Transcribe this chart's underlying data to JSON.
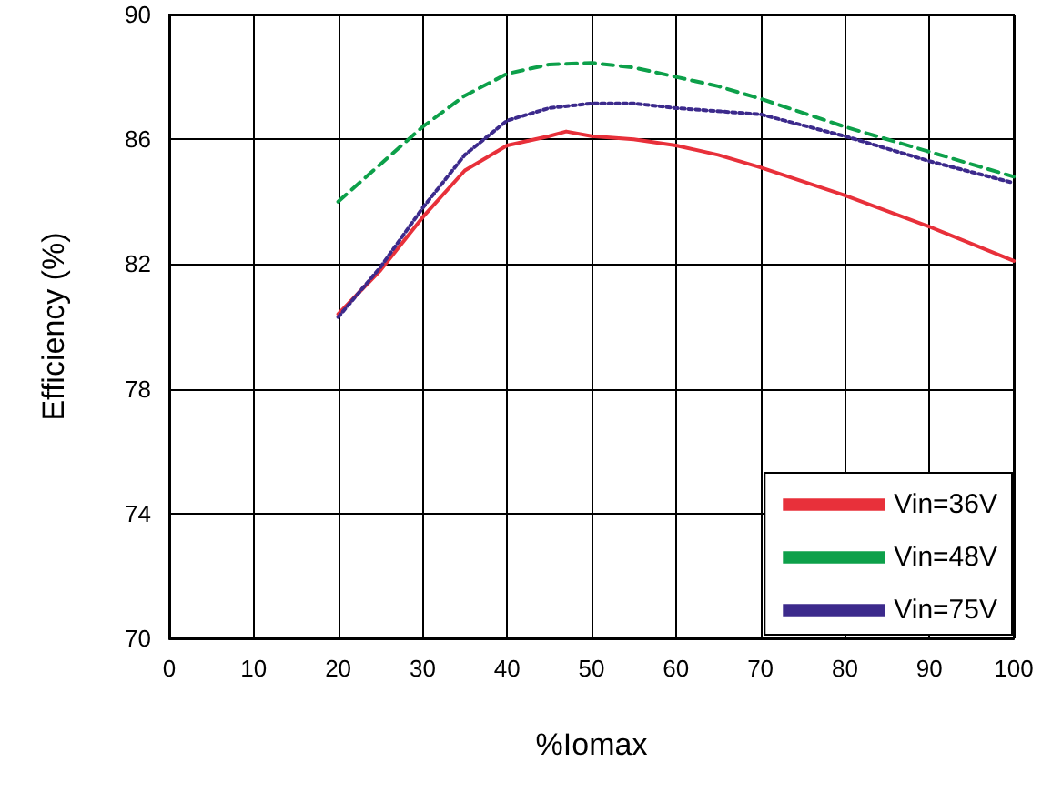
{
  "chart_data": {
    "type": "line",
    "xlabel": "%Iomax",
    "ylabel": "Efficiency (%)",
    "xlim": [
      0,
      100
    ],
    "xticks": [
      0,
      10,
      20,
      30,
      40,
      50,
      60,
      70,
      80,
      90,
      100
    ],
    "ylim": [
      70,
      90
    ],
    "yticks": [
      70,
      74,
      78,
      82,
      86,
      90
    ],
    "grid": true,
    "legend": "bottom right",
    "marker": "none",
    "series": [
      {
        "name": "Vin=36V",
        "color": "#e8303a",
        "line_style": "solid",
        "x": [
          20,
          25,
          30,
          35,
          40,
          45,
          47,
          50,
          55,
          60,
          65,
          70,
          80,
          90,
          100
        ],
        "values": [
          80.4,
          81.8,
          83.5,
          85.0,
          85.8,
          86.1,
          86.25,
          86.1,
          86.0,
          85.8,
          85.5,
          85.1,
          84.2,
          83.2,
          82.1
        ]
      },
      {
        "name": "Vin=48V",
        "color": "#0da04a",
        "line_style": "dashed",
        "x": [
          20,
          25,
          30,
          35,
          40,
          45,
          50,
          55,
          60,
          65,
          70,
          80,
          90,
          100
        ],
        "values": [
          84.0,
          85.2,
          86.4,
          87.4,
          88.1,
          88.4,
          88.45,
          88.3,
          88.0,
          87.7,
          87.3,
          86.4,
          85.6,
          84.8
        ]
      },
      {
        "name": "Vin=75V",
        "color": "#3c2a8c",
        "line_style": "dotted",
        "x": [
          20,
          25,
          30,
          35,
          40,
          45,
          50,
          55,
          60,
          70,
          80,
          90,
          100
        ],
        "values": [
          80.3,
          81.9,
          83.8,
          85.5,
          86.6,
          87.0,
          87.15,
          87.15,
          87.0,
          86.8,
          86.1,
          85.3,
          84.6
        ]
      }
    ]
  }
}
